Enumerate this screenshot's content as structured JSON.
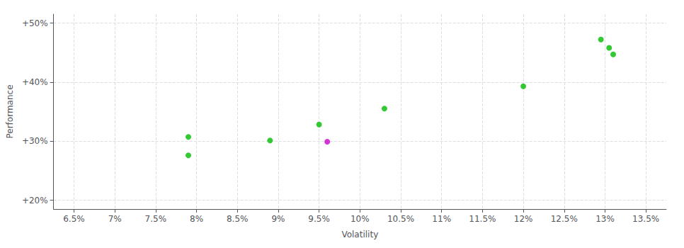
{
  "chart_data": {
    "type": "scatter",
    "xlabel": "Volatility",
    "ylabel": "Performance",
    "xlim": [
      0.0625,
      0.1375
    ],
    "ylim": [
      0.185,
      0.515
    ],
    "xticks": [
      {
        "value": 0.065,
        "label": "6.5%"
      },
      {
        "value": 0.07,
        "label": "7%"
      },
      {
        "value": 0.075,
        "label": "7.5%"
      },
      {
        "value": 0.08,
        "label": "8%"
      },
      {
        "value": 0.085,
        "label": "8.5%"
      },
      {
        "value": 0.09,
        "label": "9%"
      },
      {
        "value": 0.095,
        "label": "9.5%"
      },
      {
        "value": 0.1,
        "label": "10%"
      },
      {
        "value": 0.105,
        "label": "10.5%"
      },
      {
        "value": 0.11,
        "label": "11%"
      },
      {
        "value": 0.115,
        "label": "11.5%"
      },
      {
        "value": 0.12,
        "label": "12%"
      },
      {
        "value": 0.125,
        "label": "12.5%"
      },
      {
        "value": 0.13,
        "label": "13%"
      },
      {
        "value": 0.135,
        "label": "13.5%"
      }
    ],
    "yticks": [
      {
        "value": 0.2,
        "label": "+20%"
      },
      {
        "value": 0.3,
        "label": "+30%"
      },
      {
        "value": 0.4,
        "label": "+40%"
      },
      {
        "value": 0.5,
        "label": "+50%"
      }
    ],
    "grid": true,
    "series": [
      {
        "color": "#00bb00",
        "x": [
          0.079,
          0.079,
          0.089,
          0.095,
          0.103,
          0.12,
          0.1295,
          0.1305,
          0.131
        ],
        "values": [
          0.307,
          0.276,
          0.301,
          0.328,
          0.355,
          0.393,
          0.472,
          0.458,
          0.447
        ]
      },
      {
        "color": "#cc00cc",
        "x": [
          0.096
        ],
        "values": [
          0.299
        ]
      }
    ]
  }
}
